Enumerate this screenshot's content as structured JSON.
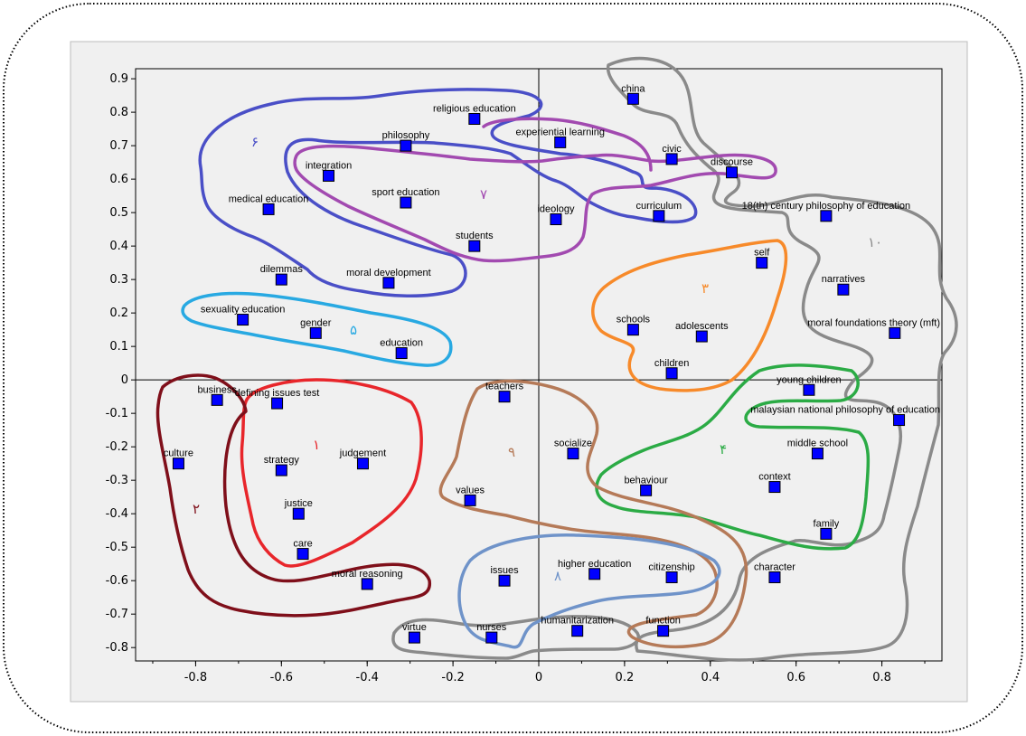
{
  "chart_data": {
    "type": "scatter",
    "title": "",
    "xlabel": "",
    "ylabel": "",
    "xlim": [
      -0.94,
      0.94
    ],
    "ylim": [
      -0.84,
      0.93
    ],
    "xticks": [
      -0.8,
      -0.6,
      -0.4,
      -0.2,
      0,
      0.2,
      0.4,
      0.6,
      0.8
    ],
    "xtick_labels": [
      "-0.8",
      "-0.6",
      "-0.4",
      "-0.2",
      "0",
      "0.2",
      "0.4",
      "0.6",
      "0.8"
    ],
    "yticks": [
      0.9,
      0.8,
      0.7,
      0.6,
      0.5,
      0.4,
      0.3,
      0.2,
      0.1,
      0,
      -0.1,
      -0.2,
      -0.3,
      -0.4,
      -0.5,
      -0.6,
      -0.7,
      -0.8
    ],
    "ytick_labels": [
      "0.9",
      "0.8",
      "0.7",
      "0.6",
      "0.5",
      "0.4",
      "0.3",
      "0.2",
      "0.1",
      "0",
      "-0.1",
      "-0.2",
      "-0.3",
      "-0.4",
      "-0.5",
      "-0.6",
      "-0.7",
      "-0.8"
    ],
    "marker_color": "#0000ff",
    "points": [
      {
        "label": "religious education",
        "x": -0.15,
        "y": 0.78
      },
      {
        "label": "philosophy",
        "x": -0.31,
        "y": 0.7
      },
      {
        "label": "integration",
        "x": -0.49,
        "y": 0.61
      },
      {
        "label": "medical education",
        "x": -0.63,
        "y": 0.51
      },
      {
        "label": "sport education",
        "x": -0.31,
        "y": 0.53
      },
      {
        "label": "students",
        "x": -0.15,
        "y": 0.4
      },
      {
        "label": "dilemmas",
        "x": -0.6,
        "y": 0.3
      },
      {
        "label": "moral development",
        "x": -0.35,
        "y": 0.29
      },
      {
        "label": "sexuality education",
        "x": -0.69,
        "y": 0.18
      },
      {
        "label": "gender",
        "x": -0.52,
        "y": 0.14
      },
      {
        "label": "education",
        "x": -0.32,
        "y": 0.08
      },
      {
        "label": "china",
        "x": 0.22,
        "y": 0.84
      },
      {
        "label": "experiential learning",
        "x": 0.05,
        "y": 0.71
      },
      {
        "label": "civic",
        "x": 0.31,
        "y": 0.66
      },
      {
        "label": "discourse",
        "x": 0.45,
        "y": 0.62
      },
      {
        "label": "ideology",
        "x": 0.04,
        "y": 0.48
      },
      {
        "label": "curriculum",
        "x": 0.28,
        "y": 0.49
      },
      {
        "label": "18(th) century philosophy of education",
        "x": 0.67,
        "y": 0.49
      },
      {
        "label": "self",
        "x": 0.52,
        "y": 0.35
      },
      {
        "label": "narratives",
        "x": 0.71,
        "y": 0.27
      },
      {
        "label": "schools",
        "x": 0.22,
        "y": 0.15
      },
      {
        "label": "adolescents",
        "x": 0.38,
        "y": 0.13
      },
      {
        "label": "moral foundations theory (mft)",
        "x": 0.83,
        "y": 0.14
      },
      {
        "label": "children",
        "x": 0.31,
        "y": 0.02
      },
      {
        "label": "young children",
        "x": 0.63,
        "y": -0.03
      },
      {
        "label": "malaysian national philosophy of education",
        "x": 0.84,
        "y": -0.12
      },
      {
        "label": "business",
        "x": -0.75,
        "y": -0.06
      },
      {
        "label": "defining issues test",
        "x": -0.61,
        "y": -0.07
      },
      {
        "label": "culture",
        "x": -0.84,
        "y": -0.25
      },
      {
        "label": "strategy",
        "x": -0.6,
        "y": -0.27
      },
      {
        "label": "judgement",
        "x": -0.41,
        "y": -0.25
      },
      {
        "label": "justice",
        "x": -0.56,
        "y": -0.4
      },
      {
        "label": "care",
        "x": -0.55,
        "y": -0.52
      },
      {
        "label": "moral reasoning",
        "x": -0.4,
        "y": -0.61
      },
      {
        "label": "teachers",
        "x": -0.08,
        "y": -0.05
      },
      {
        "label": "socialize",
        "x": 0.08,
        "y": -0.22
      },
      {
        "label": "values",
        "x": -0.16,
        "y": -0.36
      },
      {
        "label": "behaviour",
        "x": 0.25,
        "y": -0.33
      },
      {
        "label": "middle school",
        "x": 0.65,
        "y": -0.22
      },
      {
        "label": "context",
        "x": 0.55,
        "y": -0.32
      },
      {
        "label": "family",
        "x": 0.67,
        "y": -0.46
      },
      {
        "label": "higher education",
        "x": 0.13,
        "y": -0.58
      },
      {
        "label": "issues",
        "x": -0.08,
        "y": -0.6
      },
      {
        "label": "citizenship",
        "x": 0.31,
        "y": -0.59
      },
      {
        "label": "character",
        "x": 0.55,
        "y": -0.59
      },
      {
        "label": "virtue",
        "x": -0.29,
        "y": -0.77
      },
      {
        "label": "nurses",
        "x": -0.11,
        "y": -0.77
      },
      {
        "label": "humanitarization",
        "x": 0.09,
        "y": -0.75
      },
      {
        "label": "function",
        "x": 0.29,
        "y": -0.75
      }
    ],
    "clusters": [
      {
        "label": "١",
        "color": "#e8262b"
      },
      {
        "label": "٢",
        "color": "#7f0f1a"
      },
      {
        "label": "٣",
        "color": "#f78a2a"
      },
      {
        "label": "۴",
        "color": "#2bab45"
      },
      {
        "label": "۵",
        "color": "#28a9e2"
      },
      {
        "label": "۶",
        "color": "#4a4fc7"
      },
      {
        "label": "٧",
        "color": "#a24ab0"
      },
      {
        "label": "٨",
        "color": "#6f93c9"
      },
      {
        "label": "٩",
        "color": "#b57a58"
      },
      {
        "label": "١٠",
        "color": "#8a8a8a"
      }
    ]
  }
}
